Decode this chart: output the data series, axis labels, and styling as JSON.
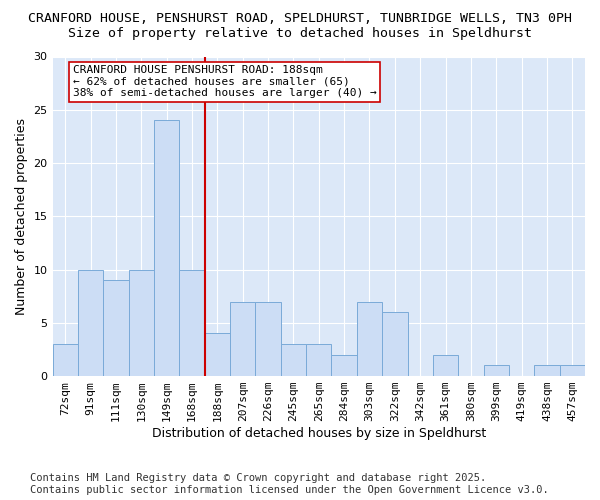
{
  "title_line1": "CRANFORD HOUSE, PENSHURST ROAD, SPELDHURST, TUNBRIDGE WELLS, TN3 0PH",
  "title_line2": "Size of property relative to detached houses in Speldhurst",
  "xlabel": "Distribution of detached houses by size in Speldhurst",
  "ylabel": "Number of detached properties",
  "categories": [
    "72sqm",
    "91sqm",
    "111sqm",
    "130sqm",
    "149sqm",
    "168sqm",
    "188sqm",
    "207sqm",
    "226sqm",
    "245sqm",
    "265sqm",
    "284sqm",
    "303sqm",
    "322sqm",
    "342sqm",
    "361sqm",
    "380sqm",
    "399sqm",
    "419sqm",
    "438sqm",
    "457sqm"
  ],
  "values": [
    3,
    10,
    9,
    10,
    24,
    10,
    4,
    7,
    7,
    3,
    3,
    2,
    7,
    6,
    0,
    2,
    0,
    1,
    0,
    1,
    1
  ],
  "bar_color": "#ccddf5",
  "bar_edge_color": "#7aaad8",
  "marker_index": 6,
  "marker_label_line1": "CRANFORD HOUSE PENSHURST ROAD: 188sqm",
  "marker_label_line2": "← 62% of detached houses are smaller (65)",
  "marker_label_line3": "38% of semi-detached houses are larger (40) →",
  "vline_color": "#cc0000",
  "box_edge_color": "#cc0000",
  "ylim": [
    0,
    30
  ],
  "yticks": [
    0,
    5,
    10,
    15,
    20,
    25,
    30
  ],
  "fig_background_color": "#ffffff",
  "plot_background_color": "#dce8f8",
  "grid_color": "#ffffff",
  "footer_line1": "Contains HM Land Registry data © Crown copyright and database right 2025.",
  "footer_line2": "Contains public sector information licensed under the Open Government Licence v3.0.",
  "title_fontsize": 9.5,
  "subtitle_fontsize": 9.5,
  "axis_label_fontsize": 9,
  "tick_fontsize": 8,
  "annotation_fontsize": 8,
  "footer_fontsize": 7.5
}
